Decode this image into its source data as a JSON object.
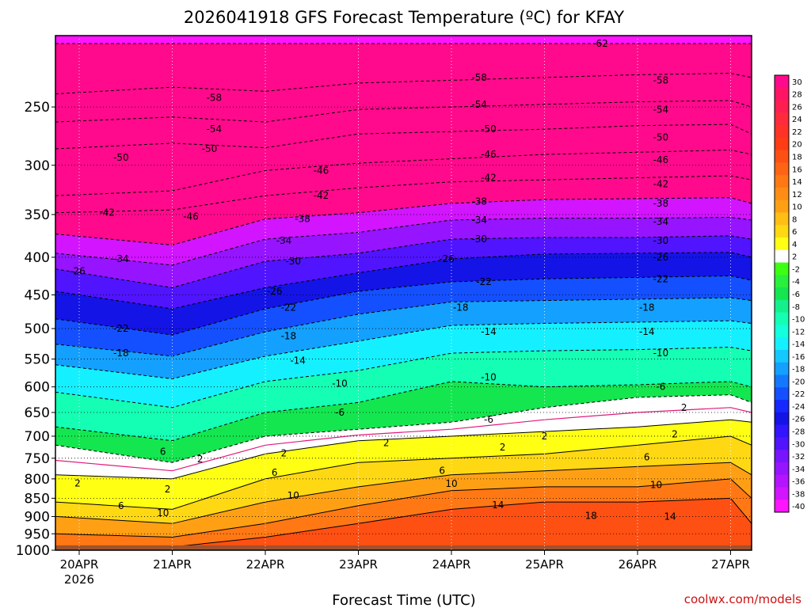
{
  "chart_data": {
    "type": "heatmap",
    "title": "2026041918 GFS Forecast Temperature (ºC) for KFAY",
    "xlabel": "Forecast Time (UTC)",
    "ylabel": "",
    "credit": "coolwx.com/models",
    "y_scale": "log-pressure",
    "ylim": [
      1000,
      200
    ],
    "y_ticks": [
      "250",
      "300",
      "350",
      "400",
      "450",
      "500",
      "550",
      "600",
      "650",
      "700",
      "750",
      "800",
      "850",
      "900",
      "950",
      "1000"
    ],
    "x_ticks": [
      "20APR",
      "21APR",
      "22APR",
      "23APR",
      "24APR",
      "25APR",
      "26APR",
      "27APR"
    ],
    "x_year": "2026",
    "grid": true,
    "colorbar": {
      "placement": "right",
      "labels": [
        "30",
        "28",
        "26",
        "24",
        "22",
        "20",
        "18",
        "16",
        "14",
        "12",
        "10",
        "8",
        "6",
        "4",
        "2",
        "-2",
        "-4",
        "-6",
        "-8",
        "-10",
        "-12",
        "-14",
        "-16",
        "-18",
        "-20",
        "-22",
        "-24",
        "-26",
        "-28",
        "-30",
        "-32",
        "-34",
        "-36",
        "-38",
        "-40"
      ],
      "colors": [
        "#ff0a8c",
        "#ff1466",
        "#ff1e50",
        "#ff2a3c",
        "#ff3228",
        "#ff3c14",
        "#ff5014",
        "#ff6414",
        "#ff7814",
        "#ff8c14",
        "#ffa014",
        "#ffbe14",
        "#ffd814",
        "#ffff14",
        "#ffffff",
        "#3cff14",
        "#28f03c",
        "#14e650",
        "#14f08c",
        "#14ffb4",
        "#14ffdc",
        "#14f0ff",
        "#14c8ff",
        "#14a0ff",
        "#1478ff",
        "#1450ff",
        "#1428ff",
        "#1414e6",
        "#3214ff",
        "#5014ff",
        "#7814ff",
        "#9614ff",
        "#b414ff",
        "#d214ff",
        "#ff14ff"
      ]
    },
    "contours": [
      {
        "level": -62,
        "pressure": [
          205,
          205,
          205,
          205,
          205,
          205,
          205,
          205,
          205
        ]
      },
      {
        "level": -58,
        "pressure": [
          240,
          235,
          238,
          232,
          230,
          228,
          226,
          225,
          228
        ]
      },
      {
        "level": -54,
        "pressure": [
          262,
          258,
          262,
          252,
          250,
          248,
          246,
          245,
          250
        ]
      },
      {
        "level": -50,
        "pressure": [
          285,
          280,
          284,
          272,
          270,
          268,
          265,
          264,
          272
        ]
      },
      {
        "level": -46,
        "pressure": [
          330,
          325,
          305,
          298,
          294,
          290,
          288,
          286,
          290
        ]
      },
      {
        "level": -42,
        "pressure": [
          348,
          345,
          330,
          322,
          316,
          314,
          312,
          310,
          314
        ]
      },
      {
        "level": -38,
        "pressure": [
          372,
          385,
          355,
          348,
          338,
          334,
          333,
          332,
          338
        ]
      },
      {
        "level": -34,
        "pressure": [
          395,
          410,
          378,
          370,
          356,
          354,
          354,
          353,
          356
        ]
      },
      {
        "level": -30,
        "pressure": [
          415,
          440,
          405,
          395,
          378,
          376,
          376,
          374,
          378
        ]
      },
      {
        "level": -26,
        "pressure": [
          445,
          470,
          440,
          420,
          402,
          396,
          395,
          394,
          400
        ]
      },
      {
        "level": -22,
        "pressure": [
          485,
          510,
          470,
          445,
          432,
          428,
          426,
          424,
          430
        ]
      },
      {
        "level": -18,
        "pressure": [
          525,
          545,
          505,
          478,
          460,
          458,
          456,
          454,
          458
        ]
      },
      {
        "level": -14,
        "pressure": [
          560,
          585,
          545,
          520,
          495,
          492,
          490,
          488,
          492
        ]
      },
      {
        "level": -10,
        "pressure": [
          610,
          640,
          590,
          570,
          540,
          536,
          534,
          530,
          536
        ]
      },
      {
        "level": -6,
        "pressure": [
          680,
          710,
          650,
          630,
          590,
          600,
          596,
          590,
          600
        ]
      },
      {
        "level": -2,
        "pressure": [
          720,
          760,
          700,
          685,
          670,
          640,
          620,
          615,
          630
        ]
      },
      {
        "level": 2,
        "pressure": [
          790,
          800,
          740,
          710,
          700,
          690,
          680,
          665,
          670
        ]
      },
      {
        "level": 6,
        "pressure": [
          860,
          880,
          800,
          760,
          750,
          740,
          720,
          700,
          720
        ]
      },
      {
        "level": 10,
        "pressure": [
          900,
          920,
          860,
          820,
          790,
          780,
          770,
          760,
          790
        ]
      },
      {
        "level": 14,
        "pressure": [
          950,
          960,
          920,
          870,
          830,
          820,
          820,
          800,
          850
        ]
      },
      {
        "level": 18,
        "pressure": [
          990,
          990,
          960,
          920,
          880,
          860,
          860,
          850,
          920
        ]
      }
    ],
    "contour_labels": [
      {
        "text": "-62",
        "x": 5.6,
        "p": 205
      },
      {
        "text": "-58",
        "x": 1.45,
        "p": 243
      },
      {
        "text": "-58",
        "x": 4.3,
        "p": 228
      },
      {
        "text": "-58",
        "x": 6.25,
        "p": 230
      },
      {
        "text": "-54",
        "x": 1.45,
        "p": 268
      },
      {
        "text": "-54",
        "x": 4.3,
        "p": 248
      },
      {
        "text": "-54",
        "x": 6.25,
        "p": 252
      },
      {
        "text": "-50",
        "x": 0.45,
        "p": 293
      },
      {
        "text": "-50",
        "x": 1.4,
        "p": 285
      },
      {
        "text": "-50",
        "x": 4.4,
        "p": 268
      },
      {
        "text": "-50",
        "x": 6.25,
        "p": 275
      },
      {
        "text": "-46",
        "x": 1.2,
        "p": 352
      },
      {
        "text": "-46",
        "x": 2.6,
        "p": 305
      },
      {
        "text": "-46",
        "x": 4.4,
        "p": 290
      },
      {
        "text": "-46",
        "x": 6.25,
        "p": 295
      },
      {
        "text": "-42",
        "x": 0.3,
        "p": 348
      },
      {
        "text": "-42",
        "x": 2.6,
        "p": 330
      },
      {
        "text": "-42",
        "x": 4.4,
        "p": 312
      },
      {
        "text": "-42",
        "x": 6.25,
        "p": 318
      },
      {
        "text": "-38",
        "x": 2.4,
        "p": 355
      },
      {
        "text": "-38",
        "x": 4.3,
        "p": 336
      },
      {
        "text": "-38",
        "x": 6.25,
        "p": 338
      },
      {
        "text": "-34",
        "x": 0.45,
        "p": 402
      },
      {
        "text": "-34",
        "x": 2.2,
        "p": 380
      },
      {
        "text": "-34",
        "x": 4.3,
        "p": 356
      },
      {
        "text": "-34",
        "x": 6.25,
        "p": 358
      },
      {
        "text": "-30",
        "x": 2.3,
        "p": 405
      },
      {
        "text": "-30",
        "x": 4.3,
        "p": 378
      },
      {
        "text": "-30",
        "x": 6.25,
        "p": 380
      },
      {
        "text": "-26",
        "x": 0.0,
        "p": 418
      },
      {
        "text": "-26",
        "x": 2.1,
        "p": 445
      },
      {
        "text": "-26",
        "x": 3.95,
        "p": 402
      },
      {
        "text": "-26",
        "x": 6.25,
        "p": 400
      },
      {
        "text": "-22",
        "x": 0.45,
        "p": 500
      },
      {
        "text": "-22",
        "x": 2.25,
        "p": 468
      },
      {
        "text": "-22",
        "x": 4.35,
        "p": 432
      },
      {
        "text": "-22",
        "x": 6.25,
        "p": 428
      },
      {
        "text": "-18",
        "x": 0.45,
        "p": 540
      },
      {
        "text": "-18",
        "x": 2.25,
        "p": 512
      },
      {
        "text": "-18",
        "x": 4.1,
        "p": 468
      },
      {
        "text": "-18",
        "x": 6.1,
        "p": 468
      },
      {
        "text": "-14",
        "x": 2.35,
        "p": 553
      },
      {
        "text": "-14",
        "x": 4.4,
        "p": 505
      },
      {
        "text": "-14",
        "x": 6.1,
        "p": 505
      },
      {
        "text": "-10",
        "x": 2.8,
        "p": 594
      },
      {
        "text": "-10",
        "x": 4.4,
        "p": 582
      },
      {
        "text": "-10",
        "x": 6.25,
        "p": 540
      },
      {
        "text": "-6",
        "x": 2.8,
        "p": 650
      },
      {
        "text": "-6",
        "x": 4.4,
        "p": 665
      },
      {
        "text": "-6",
        "x": 6.25,
        "p": 600
      },
      {
        "text": "2",
        "x": 5.0,
        "p": 700
      },
      {
        "text": "2",
        "x": 6.5,
        "p": 640
      },
      {
        "text": "2",
        "x": 1.3,
        "p": 752
      },
      {
        "text": "2",
        "x": 2.2,
        "p": 738
      },
      {
        "text": "2",
        "x": 3.3,
        "p": 715
      },
      {
        "text": "2",
        "x": 4.55,
        "p": 725
      },
      {
        "text": "2",
        "x": 6.4,
        "p": 696
      },
      {
        "text": "6",
        "x": 0.9,
        "p": 735
      },
      {
        "text": "6",
        "x": 2.1,
        "p": 785
      },
      {
        "text": "6",
        "x": 3.9,
        "p": 780
      },
      {
        "text": "6",
        "x": 6.1,
        "p": 748
      },
      {
        "text": "10",
        "x": 0.9,
        "p": 890
      },
      {
        "text": "10",
        "x": 2.3,
        "p": 843
      },
      {
        "text": "10",
        "x": 4.0,
        "p": 812
      },
      {
        "text": "10",
        "x": 6.2,
        "p": 815
      },
      {
        "text": "14",
        "x": 4.5,
        "p": 868
      },
      {
        "text": "14",
        "x": 6.35,
        "p": 900
      },
      {
        "text": "2",
        "x": -0.1,
        "p": 811
      },
      {
        "text": "18",
        "x": 5.5,
        "p": 898
      },
      {
        "text": "2",
        "x": 0.95,
        "p": 826
      },
      {
        "text": "6",
        "x": 0.45,
        "p": 870
      }
    ]
  }
}
